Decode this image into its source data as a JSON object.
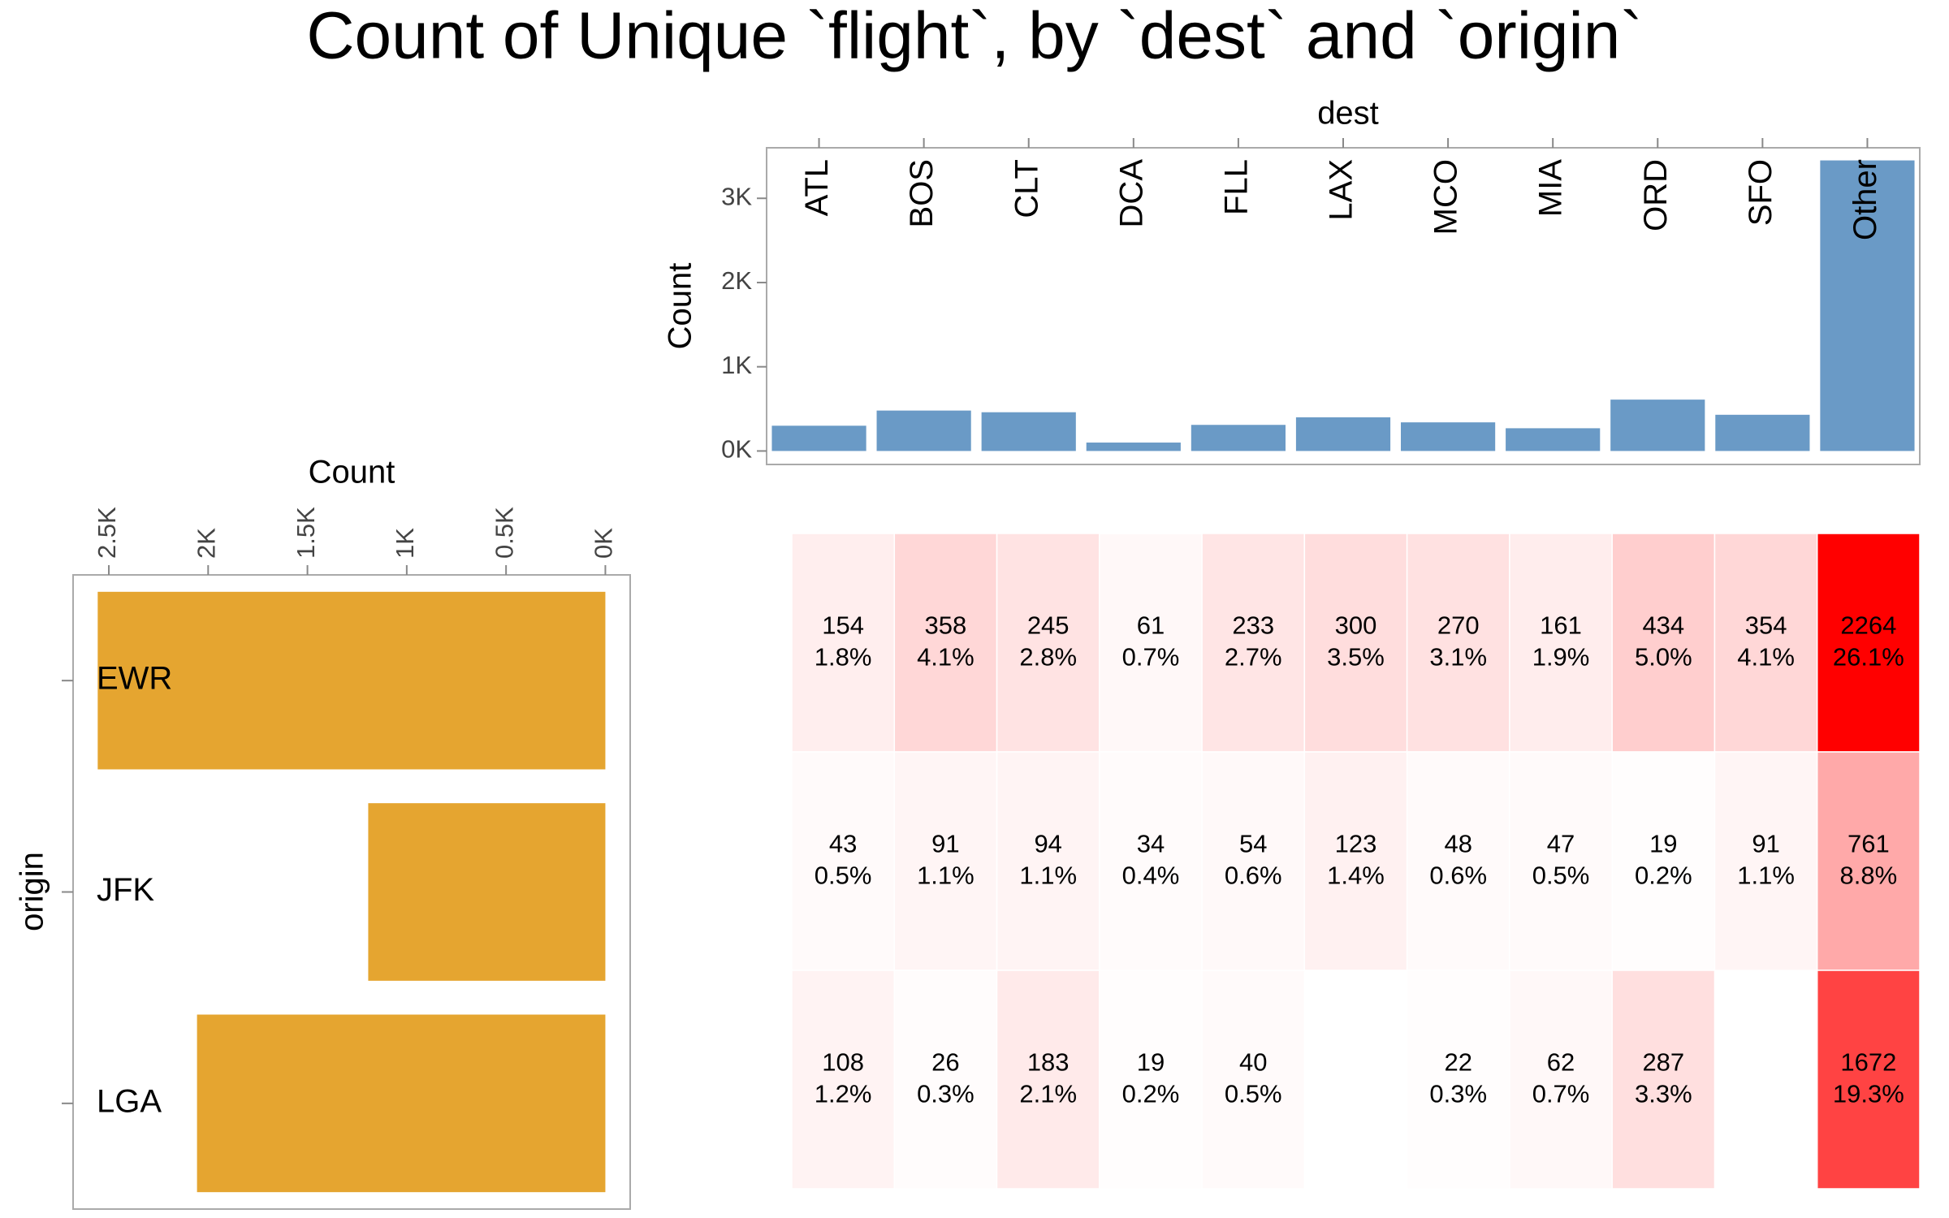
{
  "title": "Count of Unique `flight`, by `dest` and `origin`",
  "chart_data": [
    {
      "type": "bar",
      "orientation": "vertical",
      "x_label": "dest",
      "y_label": "Count",
      "categories": [
        "ATL",
        "BOS",
        "CLT",
        "DCA",
        "FLL",
        "LAX",
        "MCO",
        "MIA",
        "ORD",
        "SFO",
        "Other"
      ],
      "values": [
        300,
        480,
        460,
        100,
        310,
        400,
        340,
        270,
        610,
        430,
        3450
      ],
      "color": "#6a9ac6",
      "ylim": [
        -160,
        3600
      ],
      "yticks": [
        {
          "value": 0,
          "label": "0K"
        },
        {
          "value": 1000,
          "label": "1K"
        },
        {
          "value": 2000,
          "label": "2K"
        },
        {
          "value": 3000,
          "label": "3K"
        }
      ]
    },
    {
      "type": "bar",
      "orientation": "horizontal",
      "x_label": "Count",
      "y_label": "origin",
      "categories": [
        "EWR",
        "JFK",
        "LGA"
      ],
      "values": [
        2556,
        1194,
        2056
      ],
      "color": "#e5a530",
      "xlim": [
        2680,
        -125
      ],
      "xticks": [
        {
          "value": 2500,
          "label": "2.5K"
        },
        {
          "value": 2000,
          "label": "2K"
        },
        {
          "value": 1500,
          "label": "1.5K"
        },
        {
          "value": 1000,
          "label": "1K"
        },
        {
          "value": 500,
          "label": "0.5K"
        },
        {
          "value": 0,
          "label": "0K"
        }
      ]
    },
    {
      "type": "heatmap",
      "rows": [
        "EWR",
        "JFK",
        "LGA"
      ],
      "columns": [
        "ATL",
        "BOS",
        "CLT",
        "DCA",
        "FLL",
        "LAX",
        "MCO",
        "MIA",
        "ORD",
        "SFO",
        "Other"
      ],
      "values": [
        [
          154,
          358,
          245,
          61,
          233,
          300,
          270,
          161,
          434,
          354,
          2264
        ],
        [
          43,
          91,
          94,
          34,
          54,
          123,
          48,
          47,
          19,
          91,
          761
        ],
        [
          108,
          26,
          183,
          19,
          40,
          null,
          22,
          62,
          287,
          null,
          1672
        ]
      ],
      "percent_labels": [
        [
          "1.8%",
          "4.1%",
          "2.8%",
          "0.7%",
          "2.7%",
          "3.5%",
          "3.1%",
          "1.9%",
          "5.0%",
          "4.1%",
          "26.1%"
        ],
        [
          "0.5%",
          "1.1%",
          "1.1%",
          "0.4%",
          "0.6%",
          "1.4%",
          "0.6%",
          "0.5%",
          "0.2%",
          "1.1%",
          "8.8%"
        ],
        [
          "1.2%",
          "0.3%",
          "2.1%",
          "0.2%",
          "0.5%",
          null,
          "0.3%",
          "0.7%",
          "3.3%",
          null,
          "19.3%"
        ]
      ],
      "color": "#ff0000"
    }
  ]
}
